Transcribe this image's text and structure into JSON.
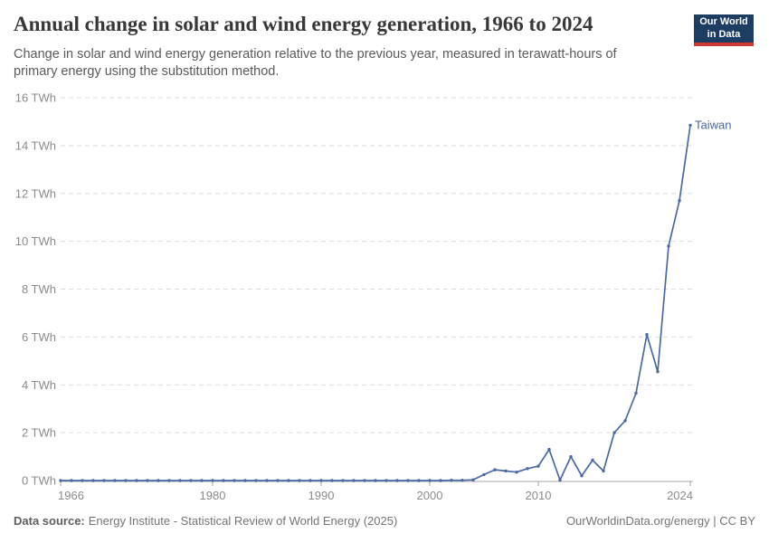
{
  "header": {
    "title": "Annual change in solar and wind energy generation, 1966 to 2024",
    "subtitle": "Change in solar and wind energy generation relative to the previous year, measured in terawatt-hours of primary energy using the substitution method.",
    "logo": {
      "line1": "Our World",
      "line2": "in Data",
      "bg_color": "#1d3d63",
      "accent_color": "#d13832"
    }
  },
  "chart_data": {
    "type": "line",
    "title": "Annual change in solar and wind energy generation, 1966 to 2024",
    "xlabel": "",
    "ylabel": "TWh",
    "xlim": [
      1966,
      2024
    ],
    "ylim": [
      0,
      16
    ],
    "x_ticks": [
      1966,
      1980,
      1990,
      2000,
      2010,
      2024
    ],
    "y_ticks": [
      0,
      2,
      4,
      6,
      8,
      10,
      12,
      14,
      16
    ],
    "y_tick_suffix": " TWh",
    "grid": "horizontal-dashed",
    "legend_position": "end-of-line-label",
    "series": [
      {
        "name": "Taiwan",
        "color": "#4a69a5",
        "x": [
          1966,
          1967,
          1968,
          1969,
          1970,
          1971,
          1972,
          1973,
          1974,
          1975,
          1976,
          1977,
          1978,
          1979,
          1980,
          1981,
          1982,
          1983,
          1984,
          1985,
          1986,
          1987,
          1988,
          1989,
          1990,
          1991,
          1992,
          1993,
          1994,
          1995,
          1996,
          1997,
          1998,
          1999,
          2000,
          2001,
          2002,
          2003,
          2004,
          2005,
          2006,
          2007,
          2008,
          2009,
          2010,
          2011,
          2012,
          2013,
          2014,
          2015,
          2016,
          2017,
          2018,
          2019,
          2020,
          2021,
          2022,
          2023,
          2024
        ],
        "values": [
          0,
          0,
          0,
          0,
          0,
          0,
          0,
          0,
          0,
          0,
          0,
          0,
          0,
          0,
          0,
          0,
          0,
          0,
          0,
          0,
          0,
          0,
          0,
          0,
          0,
          0,
          0,
          0,
          0,
          0,
          0,
          0,
          0,
          0,
          0,
          0,
          0.01,
          0.01,
          0.03,
          0.25,
          0.45,
          0.4,
          0.35,
          0.5,
          0.6,
          1.3,
          0.02,
          1.0,
          0.2,
          0.85,
          0.4,
          2.0,
          2.5,
          3.65,
          6.1,
          4.55,
          9.8,
          11.7,
          14.85
        ]
      }
    ]
  },
  "footer": {
    "datasource_label": "Data source:",
    "datasource_text": "Energy Institute - Statistical Review of World Energy (2025)",
    "credit": "OurWorldinData.org/energy | CC BY"
  }
}
